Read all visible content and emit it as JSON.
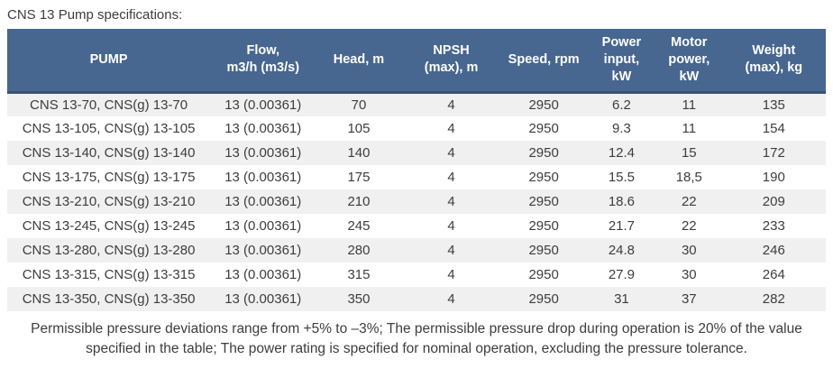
{
  "title": "CNS 13 Pump specifications:",
  "colors": {
    "header_bg": "#476690",
    "header_border": "#3a5174",
    "row_stripe": "#f0f0f0",
    "body_text": "#3d3d3d",
    "header_text": "#ffffff"
  },
  "table": {
    "columns": [
      {
        "key": "pump",
        "label": "PUMP"
      },
      {
        "key": "flow",
        "label": "Flow,\nm3/h (m3/s)"
      },
      {
        "key": "head",
        "label": "Head, m"
      },
      {
        "key": "npsh",
        "label": "NPSH\n(max), m"
      },
      {
        "key": "speed",
        "label": "Speed, rpm"
      },
      {
        "key": "power-input",
        "label": "Power\ninput,\nkW"
      },
      {
        "key": "motor-power",
        "label": "Motor\npower,\nkW"
      },
      {
        "key": "weight",
        "label": "Weight\n(max), kg"
      }
    ],
    "rows": [
      [
        "CNS 13-70, CNS(g) 13-70",
        "13 (0.00361)",
        "70",
        "4",
        "2950",
        "6.2",
        "11",
        "135"
      ],
      [
        "CNS 13-105, CNS(g) 13-105",
        "13 (0.00361)",
        "105",
        "4",
        "2950",
        "9.3",
        "11",
        "154"
      ],
      [
        "CNS 13-140, CNS(g) 13-140",
        "13 (0.00361)",
        "140",
        "4",
        "2950",
        "12.4",
        "15",
        "172"
      ],
      [
        "CNS 13-175, CNS(g) 13-175",
        "13 (0.00361)",
        "175",
        "4",
        "2950",
        "15.5",
        "18,5",
        "190"
      ],
      [
        "CNS 13-210, CNS(g) 13-210",
        "13 (0.00361)",
        "210",
        "4",
        "2950",
        "18.6",
        "22",
        "209"
      ],
      [
        "CNS 13-245, CNS(g) 13-245",
        "13 (0.00361)",
        "245",
        "4",
        "2950",
        "21.7",
        "22",
        "233"
      ],
      [
        "CNS 13-280, CNS(g) 13-280",
        "13 (0.00361)",
        "280",
        "4",
        "2950",
        "24.8",
        "30",
        "246"
      ],
      [
        "CNS 13-315, CNS(g) 13-315",
        "13 (0.00361)",
        "315",
        "4",
        "2950",
        "27.9",
        "30",
        "264"
      ],
      [
        "CNS 13-350, CNS(g) 13-350",
        "13 (0.00361)",
        "350",
        "4",
        "2950",
        "31",
        "37",
        "282"
      ]
    ]
  },
  "footnote_lines": [
    "Permissible pressure deviations range from +5% to –3%; The permissible pressure drop during operation is 20% of the value",
    "specified in the table; The power rating is specified for nominal operation, excluding the pressure tolerance."
  ]
}
